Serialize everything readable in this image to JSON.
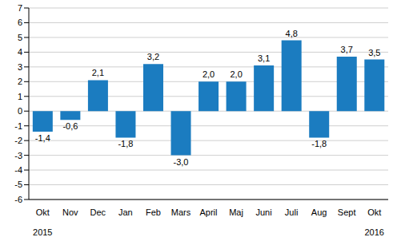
{
  "chart_data": {
    "type": "bar",
    "categories": [
      "Okt",
      "Nov",
      "Dec",
      "Jan",
      "Feb",
      "Mars",
      "April",
      "Maj",
      "Juni",
      "Juli",
      "Aug",
      "Sept",
      "Okt"
    ],
    "category_years": [
      "2015",
      null,
      null,
      null,
      null,
      null,
      null,
      null,
      null,
      null,
      null,
      null,
      "2016"
    ],
    "values": [
      -1.4,
      -0.6,
      2.1,
      -1.8,
      3.2,
      -3.0,
      2.0,
      2.0,
      3.1,
      4.8,
      -1.8,
      3.7,
      3.5
    ],
    "value_labels": [
      "-1,4",
      "-0,6",
      "2,1",
      "-1,8",
      "3,2",
      "-3,0",
      "2,0",
      "2,0",
      "3,1",
      "4,8",
      "-1,8",
      "3,7",
      "3,5"
    ],
    "data_labels": true,
    "color": "#1b7cc0",
    "ylim": [
      -6,
      7
    ],
    "yticks": [
      -6,
      -5,
      -4,
      -3,
      -2,
      -1,
      0,
      1,
      2,
      3,
      4,
      5,
      6,
      7
    ],
    "grid": true
  }
}
